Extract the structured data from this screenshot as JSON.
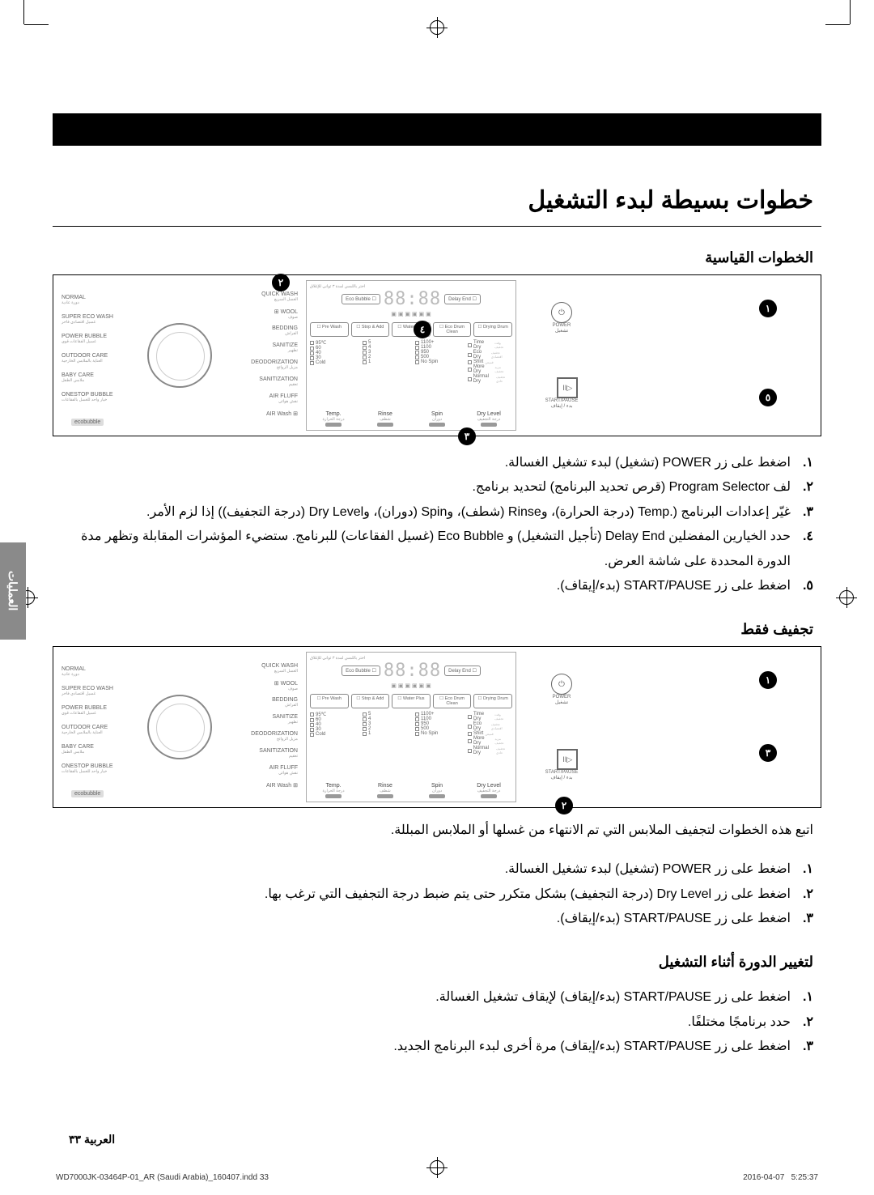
{
  "page": {
    "title": "خطوات بسيطة لبدء التشغيل",
    "side_tab": "العمليات",
    "page_number": "٣٣",
    "page_lang_label": "العربية",
    "print_file": "WD7000JK-03464P-01_AR (Saudi Arabia)_160407.indd   33",
    "print_date": "2016-04-07",
    "print_time": "5:25:37"
  },
  "section1": {
    "heading": "الخطوات القياسية",
    "steps": [
      "اضغط على زر POWER (تشغيل) لبدء تشغيل الغسالة.",
      "لف Program Selector (قرص تحديد البرنامج) لتحديد برنامج.",
      "غيّر إعدادات البرنامج (.Temp (درجة الحرارة)، وRinse (شطف)، وSpin (دوران)، وDry Level (درجة التجفيف)) إذا لزم الأمر.",
      "حدد الخيارين المفضلين Delay End (تأجيل التشغيل) و Eco Bubble (غسيل الفقاعات) للبرنامج. ستضيء المؤشرات المقابلة وتظهر مدة الدورة المحددة على شاشة العرض.",
      "اضغط على زر START/PAUSE (بدء/إيقاف)."
    ],
    "step_nums": [
      "١.",
      "٢.",
      "٣.",
      "٤.",
      "٥."
    ],
    "callouts": [
      "١",
      "٢",
      "٣",
      "٤",
      "٥"
    ]
  },
  "section2": {
    "heading": "تجفيف فقط",
    "intro": "اتبع هذه الخطوات لتجفيف الملابس التي تم الانتهاء من غسلها أو الملابس المبللة.",
    "steps": [
      "اضغط على زر POWER (تشغيل) لبدء تشغيل الغسالة.",
      "اضغط على زر Dry Level (درجة التجفيف) بشكل متكرر حتى يتم ضبط درجة التجفيف التي ترغب بها.",
      "اضغط على زر START/PAUSE (بدء/إيقاف)."
    ],
    "step_nums": [
      "١.",
      "٢.",
      "٣."
    ],
    "callouts": [
      "١",
      "٢",
      "٣"
    ]
  },
  "section3": {
    "heading": "لتغيير الدورة أثناء التشغيل",
    "steps": [
      "اضغط على زر START/PAUSE (بدء/إيقاف) لإيقاف تشغيل الغسالة.",
      "حدد برنامجًا مختلفًا.",
      "اضغط على زر START/PAUSE (بدء/إيقاف) مرة أخرى لبدء البرنامج الجديد."
    ],
    "step_nums": [
      "١.",
      "٢.",
      "٣."
    ]
  },
  "panel": {
    "top_note": "اختر باللمس لمدة ٣ ثواني للإغلاق",
    "dial_left": [
      {
        "en": "NORMAL",
        "ar": "دورة عادية"
      },
      {
        "en": "SUPER ECO WASH",
        "ar": "غسيل اقتصادي فاخر"
      },
      {
        "en": "POWER BUBBLE",
        "ar": "غسيل الفقاعات قوي"
      },
      {
        "en": "OUTDOOR CARE",
        "ar": "العناية بالملابس الخارجية"
      },
      {
        "en": "BABY CARE",
        "ar": "ملابس الطفل"
      },
      {
        "en": "ONESTOP BUBBLE",
        "ar": "خيار واحد للغسل بالفقاعات"
      }
    ],
    "dial_right": [
      {
        "en": "QUICK WASH",
        "ar": "الغسل السريع"
      },
      {
        "en": "WOOL",
        "ar": "صوف"
      },
      {
        "en": "BEDDING",
        "ar": "الفراش"
      },
      {
        "en": "SANITIZE",
        "ar": "تطهير"
      },
      {
        "en": "DEODORIZATION",
        "ar": "مزيل الروائح"
      },
      {
        "en": "SANITIZATION",
        "ar": "تعقيم"
      },
      {
        "en": "AIR FLUFF",
        "ar": "نفش هوائي"
      },
      {
        "en": "AIR Wash",
        "ar": ""
      }
    ],
    "eco_badge": "ecobubble",
    "delay_end": "Delay End",
    "eco_bubble": "Eco Bubble",
    "segment": "88:88",
    "opt_buttons": [
      "Pre Wash",
      "Stop & Add",
      "Water Plus",
      "Eco Drum Clean",
      "Drying Drum"
    ],
    "temp_col": [
      "95℃",
      "60",
      "40",
      "30",
      "Cold"
    ],
    "rinse_col": [
      "5",
      "4",
      "3",
      "2",
      "1"
    ],
    "spin_col": [
      "1100+",
      "1100",
      "950",
      "500",
      "No Spin"
    ],
    "dry_col": [
      "Time Dry",
      "Eco Dry",
      "Shirt",
      "More Dry",
      "Normal Dry"
    ],
    "dry_col_ar": [
      "وقت تجفيف",
      "تجفيف اقتصادي",
      "قميص",
      "مزيد تجفيف",
      "تجفيف عادي"
    ],
    "bottom_buttons": [
      {
        "en": "Temp.",
        "ar": "درجة الحرارة"
      },
      {
        "en": "Rinse",
        "ar": "شطف"
      },
      {
        "en": "Spin",
        "ar": "دوران"
      },
      {
        "en": "Dry Level",
        "ar": "درجة التجفيف"
      }
    ],
    "power_label": {
      "en": "POWER",
      "ar": "تشغيل"
    },
    "start_label": {
      "en": "START/PAUSE",
      "ar": "بدء / إيقاف"
    }
  }
}
